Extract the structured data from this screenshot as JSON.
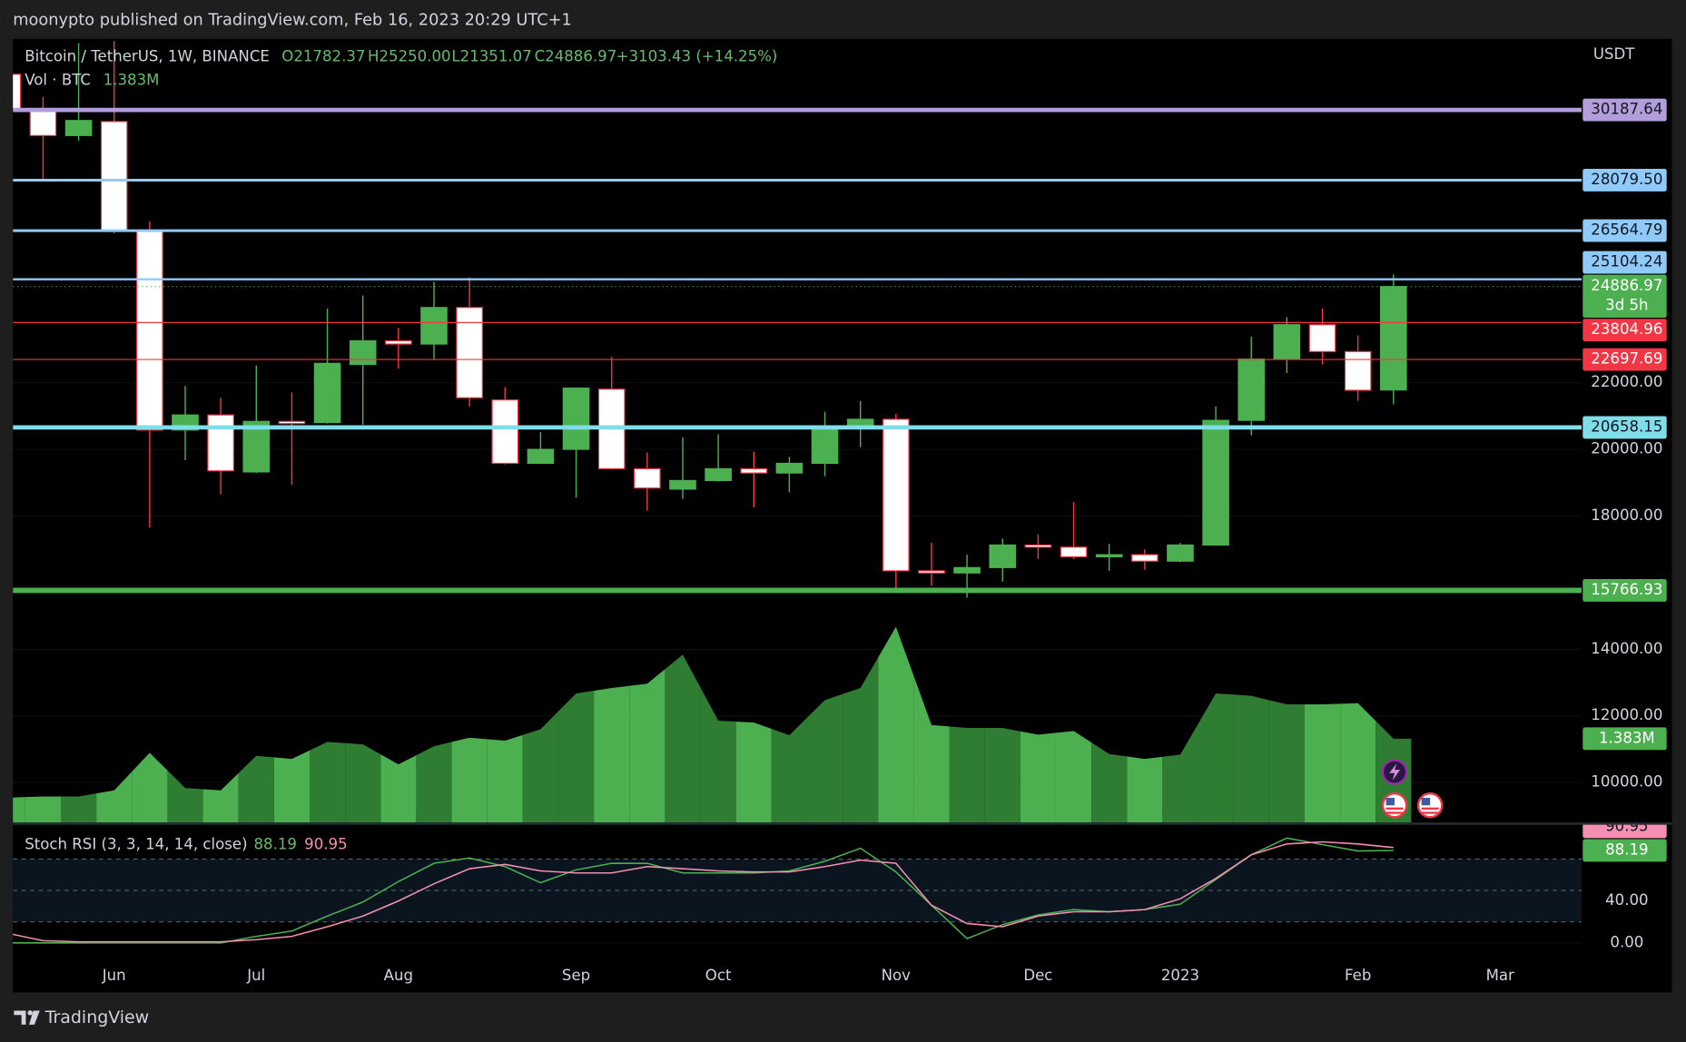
{
  "header": {
    "published": "moonypto published on TradingView.com, Feb 16, 2023 20:29 UTC+1"
  },
  "footer": {
    "brand": "TradingView"
  },
  "chart_data": [
    {
      "type": "candlestick",
      "title": "Bitcoin / TetherUS, 1W, BINANCE",
      "legend": [
        "O21782.37",
        "H25250.00",
        "L21351.07",
        "C24886.97"
      ],
      "change": "+3103.43 (+14.25%)",
      "currency": "USDT",
      "countdown": "3d 5h",
      "categories": [
        null,
        null,
        null,
        "Jun",
        null,
        null,
        null,
        "Jul",
        null,
        null,
        null,
        "Aug",
        null,
        null,
        null,
        null,
        "Sep",
        null,
        null,
        null,
        "Oct",
        null,
        null,
        null,
        null,
        "Nov",
        null,
        null,
        null,
        "Dec",
        null,
        null,
        null,
        "2023",
        null,
        null,
        null,
        null,
        "Feb",
        null,
        null,
        null,
        "Mar",
        null,
        null
      ],
      "open": [
        31258,
        30226,
        29419,
        29839,
        26548,
        20581,
        21032,
        19323,
        20839,
        20806,
        22548,
        23258,
        23161,
        24258,
        21484,
        19581,
        20000,
        21806,
        19419,
        18806,
        19065,
        19419,
        19290,
        19581,
        20645,
        20903,
        16355,
        16290,
        16452,
        17129,
        17065,
        16774,
        16839,
        16645,
        17129,
        20871,
        22710,
        23742,
        22935,
        21782.37,
        null,
        null,
        null,
        null,
        null
      ],
      "high": [
        31549,
        30581,
        32194,
        32258,
        26839,
        21903,
        21548,
        22516,
        21710,
        24226,
        24613,
        23645,
        25032,
        25161,
        21871,
        20516,
        21839,
        22774,
        19903,
        20355,
        20452,
        19935,
        19774,
        21129,
        21452,
        21065,
        17194,
        16839,
        17323,
        17452,
        18419,
        17161,
        17000,
        17194,
        21290,
        23387,
        23968,
        24226,
        23419,
        25250,
        null,
        null,
        null,
        null,
        null
      ],
      "low": [
        30194,
        28065,
        29258,
        26484,
        17645,
        19677,
        18645,
        19290,
        18935,
        20774,
        20742,
        22419,
        22677,
        21290,
        19548,
        19581,
        18548,
        19387,
        18161,
        18516,
        19032,
        18258,
        18710,
        19194,
        20065,
        15677,
        15903,
        15548,
        16032,
        16710,
        16710,
        16355,
        16387,
        16613,
        17129,
        20419,
        22290,
        22548,
        21452,
        21351.07,
        null,
        null,
        null,
        null,
        null
      ],
      "close": [
        30226,
        29419,
        29871,
        26548,
        20581,
        21032,
        19355,
        20839,
        20774,
        22581,
        23258,
        23161,
        24258,
        21548,
        19581,
        20000,
        21839,
        19419,
        18839,
        19065,
        19419,
        19290,
        19581,
        20645,
        20903,
        16355,
        16290,
        16452,
        17129,
        17065,
        16774,
        16839,
        16645,
        17129,
        20871,
        22710,
        23742,
        22935,
        21774,
        24886.97,
        null,
        null,
        null,
        null,
        null
      ],
      "up_color": "#4caf50",
      "down_color": "#ffffff",
      "down_border": "#f23645",
      "ylim": [
        8800,
        32320
      ],
      "yticks": [
        {
          "value": 10000,
          "label": "10000.00"
        },
        {
          "value": 12000,
          "label": "12000.00"
        },
        {
          "value": 14000,
          "label": "14000.00"
        },
        {
          "value": 18000,
          "label": "18000.00"
        },
        {
          "value": 20000,
          "label": "20000.00"
        },
        {
          "value": 22000,
          "label": "22000.00"
        }
      ],
      "levels": [
        {
          "value": 30187.64,
          "color": "#b39ddb"
        },
        {
          "value": 28079.5,
          "label": "28079.50",
          "color": "#90caf9"
        },
        {
          "value": 26564.79,
          "color": "#90caf9"
        },
        {
          "value": 25104.24,
          "color": "#90caf9"
        },
        {
          "value": 23804.96,
          "color": "#f23645"
        },
        {
          "value": 22697.69,
          "color": "#f23645"
        },
        {
          "value": 20658.15,
          "color": "#80deea"
        },
        {
          "value": 15766.93,
          "color": "#4caf50"
        }
      ]
    },
    {
      "type": "volume",
      "title": "Vol · BTC",
      "values": [
        0.41,
        0.43,
        0.43,
        0.53,
        1.15,
        0.57,
        0.53,
        1.1,
        1.05,
        1.33,
        1.29,
        0.96,
        1.26,
        1.4,
        1.35,
        1.54,
        2.13,
        2.22,
        2.29,
        2.77,
        1.68,
        1.65,
        1.44,
        2.02,
        2.22,
        3.23,
        1.61,
        1.56,
        1.56,
        1.45,
        1.51,
        1.13,
        1.05,
        1.12,
        2.13,
        2.09,
        1.95,
        1.95,
        1.97,
        1.383,
        null,
        null,
        null,
        null,
        null
      ],
      "value_labels": [
        null,
        null,
        null,
        null,
        null,
        null,
        null,
        null,
        null,
        null,
        null,
        null,
        null,
        null,
        null,
        null,
        null,
        null,
        null,
        null,
        null,
        null,
        null,
        null,
        null,
        null,
        null,
        null,
        null,
        null,
        null,
        null,
        null,
        null,
        null,
        null,
        null,
        null,
        null,
        "1.383M",
        null,
        null,
        null,
        null,
        null
      ],
      "up_color": "#2e7d32",
      "down_color": "#4caf50",
      "ylim": [
        0,
        12.93
      ]
    },
    {
      "type": "line",
      "title": "Stoch RSI (3, 3, 14, 14, close)",
      "series": [
        {
          "color": "#4caf50",
          "values": [
            0,
            0,
            0,
            0,
            0,
            0,
            0,
            6.2,
            11.3,
            25.6,
            39.0,
            58.5,
            75.9,
            81.0,
            72.8,
            57.4,
            69.7,
            75.9,
            75.9,
            66.7,
            66.7,
            66.7,
            68.7,
            77.9,
            90.3,
            67.7,
            35.9,
            4.1,
            17.4,
            26.7,
            31.8,
            29.7,
            31.8,
            36.9,
            60.5,
            84.1,
            100,
            93.8,
            87.7,
            88.19,
            null,
            null,
            null,
            null,
            null
          ]
        },
        {
          "color": "#f48fb1",
          "values": [
            9.2,
            2.1,
            1.0,
            1.0,
            1.0,
            1.0,
            1.0,
            3.1,
            6.2,
            15.4,
            25.6,
            40.0,
            56.4,
            70.8,
            74.9,
            68.7,
            66.7,
            66.7,
            72.8,
            70.8,
            68.7,
            67.7,
            67.7,
            72.8,
            79.0,
            75.9,
            35.9,
            18.5,
            15.4,
            25.6,
            29.7,
            29.7,
            31.8,
            42.1,
            61.5,
            84.1,
            94.4,
            96.4,
            94.4,
            90.95,
            null,
            null,
            null,
            null,
            null
          ]
        }
      ],
      "band": [
        20,
        80
      ],
      "midline": 50,
      "ylim": [
        -18.5,
        112.8
      ],
      "yticks": [
        {
          "value": 0,
          "label": "0.00"
        },
        {
          "value": 40,
          "label": "40.00"
        }
      ]
    }
  ]
}
